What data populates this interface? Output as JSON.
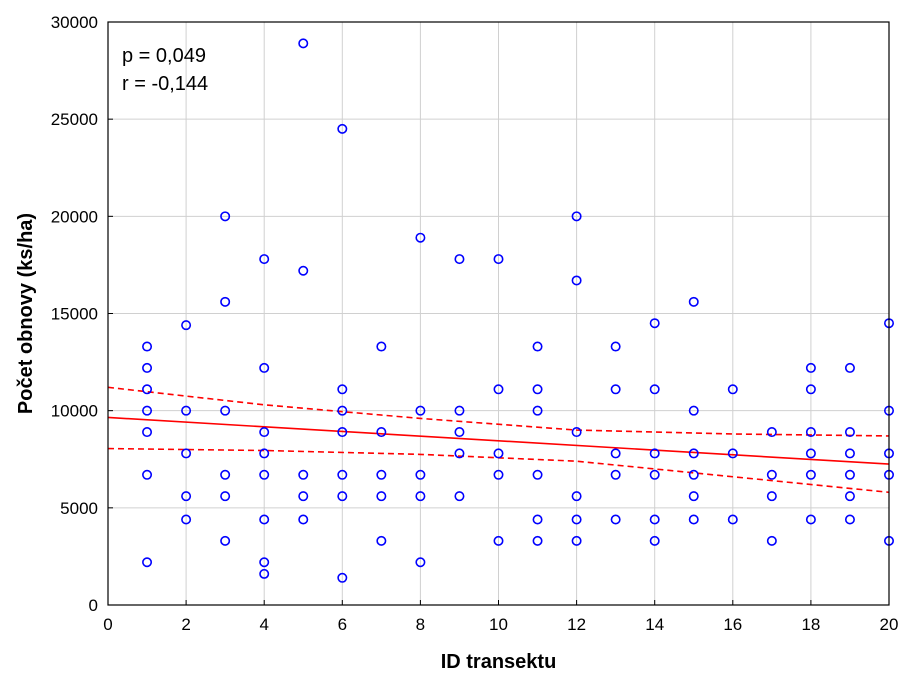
{
  "chart_data": {
    "type": "scatter",
    "xlabel": "ID transektu",
    "ylabel": "Počet obnovy (ks/ha)",
    "xlim": [
      0,
      20
    ],
    "ylim": [
      0,
      30000
    ],
    "xticks": [
      0,
      2,
      4,
      6,
      8,
      10,
      12,
      14,
      16,
      18,
      20
    ],
    "yticks": [
      0,
      5000,
      10000,
      15000,
      20000,
      25000,
      30000
    ],
    "grid": true,
    "annotations": [
      "p = 0,049",
      "r = -0,144"
    ],
    "colors": {
      "points": "#0000ff",
      "fit": "#ff0000",
      "grid": "#d0d0d0"
    },
    "points": [
      [
        1,
        13300
      ],
      [
        1,
        12200
      ],
      [
        1,
        11100
      ],
      [
        1,
        10000
      ],
      [
        1,
        8900
      ],
      [
        1,
        6700
      ],
      [
        1,
        2200
      ],
      [
        2,
        14400
      ],
      [
        2,
        10000
      ],
      [
        2,
        7800
      ],
      [
        2,
        5600
      ],
      [
        2,
        4400
      ],
      [
        3,
        20000
      ],
      [
        3,
        15600
      ],
      [
        3,
        10000
      ],
      [
        3,
        6700
      ],
      [
        3,
        5600
      ],
      [
        3,
        3300
      ],
      [
        4,
        17800
      ],
      [
        4,
        12200
      ],
      [
        4,
        8900
      ],
      [
        4,
        7800
      ],
      [
        4,
        6700
      ],
      [
        4,
        4400
      ],
      [
        4,
        2200
      ],
      [
        4,
        1600
      ],
      [
        5,
        28900
      ],
      [
        5,
        17200
      ],
      [
        5,
        6700
      ],
      [
        5,
        5600
      ],
      [
        5,
        4400
      ],
      [
        6,
        24500
      ],
      [
        6,
        11100
      ],
      [
        6,
        10000
      ],
      [
        6,
        8900
      ],
      [
        6,
        6700
      ],
      [
        6,
        5600
      ],
      [
        6,
        1400
      ],
      [
        7,
        13300
      ],
      [
        7,
        8900
      ],
      [
        7,
        6700
      ],
      [
        7,
        5600
      ],
      [
        7,
        3300
      ],
      [
        8,
        18900
      ],
      [
        8,
        10000
      ],
      [
        8,
        6700
      ],
      [
        8,
        5600
      ],
      [
        8,
        2200
      ],
      [
        9,
        17800
      ],
      [
        9,
        10000
      ],
      [
        9,
        8900
      ],
      [
        9,
        7800
      ],
      [
        9,
        5600
      ],
      [
        10,
        17800
      ],
      [
        10,
        11100
      ],
      [
        10,
        7800
      ],
      [
        10,
        6700
      ],
      [
        10,
        3300
      ],
      [
        11,
        13300
      ],
      [
        11,
        11100
      ],
      [
        11,
        10000
      ],
      [
        11,
        6700
      ],
      [
        11,
        4400
      ],
      [
        11,
        3300
      ],
      [
        12,
        20000
      ],
      [
        12,
        16700
      ],
      [
        12,
        8900
      ],
      [
        12,
        5600
      ],
      [
        12,
        4400
      ],
      [
        12,
        3300
      ],
      [
        13,
        13300
      ],
      [
        13,
        11100
      ],
      [
        13,
        7800
      ],
      [
        13,
        6700
      ],
      [
        13,
        4400
      ],
      [
        14,
        14500
      ],
      [
        14,
        11100
      ],
      [
        14,
        7800
      ],
      [
        14,
        6700
      ],
      [
        14,
        4400
      ],
      [
        14,
        3300
      ],
      [
        15,
        15600
      ],
      [
        15,
        10000
      ],
      [
        15,
        7800
      ],
      [
        15,
        6700
      ],
      [
        15,
        5600
      ],
      [
        15,
        4400
      ],
      [
        16,
        11100
      ],
      [
        16,
        7800
      ],
      [
        16,
        4400
      ],
      [
        17,
        8900
      ],
      [
        17,
        6700
      ],
      [
        17,
        5600
      ],
      [
        17,
        3300
      ],
      [
        18,
        12200
      ],
      [
        18,
        11100
      ],
      [
        18,
        8900
      ],
      [
        18,
        7800
      ],
      [
        18,
        6700
      ],
      [
        18,
        4400
      ],
      [
        19,
        12200
      ],
      [
        19,
        8900
      ],
      [
        19,
        7800
      ],
      [
        19,
        6700
      ],
      [
        19,
        5600
      ],
      [
        19,
        4400
      ],
      [
        20,
        14500
      ],
      [
        20,
        10000
      ],
      [
        20,
        7800
      ],
      [
        20,
        6700
      ],
      [
        20,
        3300
      ]
    ],
    "regression": {
      "line": [
        [
          0,
          9650
        ],
        [
          20,
          7250
        ]
      ],
      "ci_upper": [
        [
          0,
          11200
        ],
        [
          4,
          10300
        ],
        [
          8,
          9600
        ],
        [
          12,
          9000
        ],
        [
          16,
          8800
        ],
        [
          20,
          8700
        ]
      ],
      "ci_lower": [
        [
          0,
          8050
        ],
        [
          4,
          7950
        ],
        [
          8,
          7750
        ],
        [
          12,
          7400
        ],
        [
          16,
          6600
        ],
        [
          20,
          5800
        ]
      ]
    }
  }
}
